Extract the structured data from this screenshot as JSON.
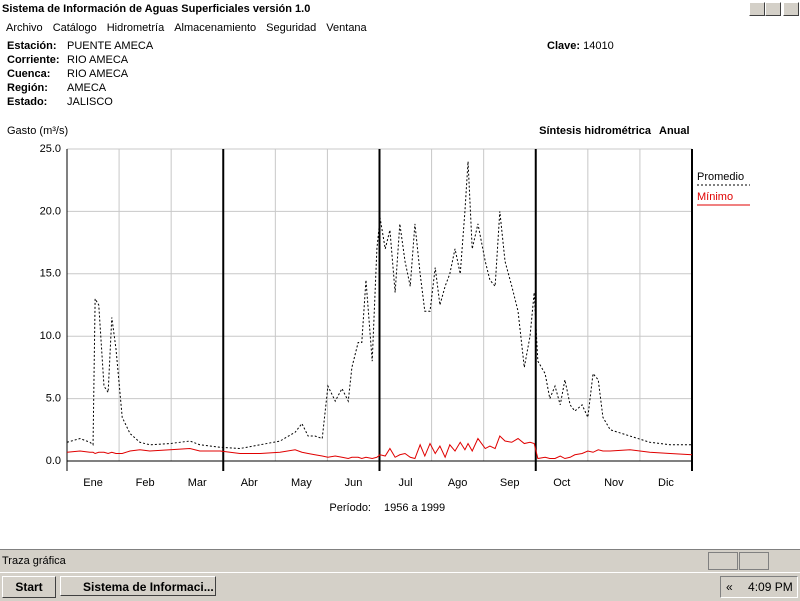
{
  "window": {
    "title": "Sistema de Información de Aguas Superficiales  versión 1.0"
  },
  "menu": [
    "Archivo",
    "Catálogo",
    "Hidrometría",
    "Almacenamiento",
    "Seguridad",
    "Ventana"
  ],
  "station": {
    "fields": [
      [
        "Estación:",
        "PUENTE AMECA"
      ],
      [
        "Corriente:",
        "RIO AMECA"
      ],
      [
        "Cuenca:",
        "RIO AMECA"
      ],
      [
        "Región:",
        "AMECA"
      ],
      [
        "Estado:",
        "JALISCO"
      ]
    ],
    "clave_label": "Clave:",
    "clave": "14010"
  },
  "chart_data": {
    "type": "line",
    "ylabel": "Gasto (m³/s)",
    "subtitle": "Síntesis hidrométrica",
    "subtitle2": "Anual",
    "period_label": "Período:",
    "period": "1956 a 1999",
    "xlim": [
      0,
      12
    ],
    "xticks": [
      {
        "value": 0.5,
        "label": "Ene"
      },
      {
        "value": 1.5,
        "label": "Feb"
      },
      {
        "value": 2.5,
        "label": "Mar"
      },
      {
        "value": 3.5,
        "label": "Abr"
      },
      {
        "value": 4.5,
        "label": "May"
      },
      {
        "value": 5.5,
        "label": "Jun"
      },
      {
        "value": 6.5,
        "label": "Jul"
      },
      {
        "value": 7.5,
        "label": "Ago"
      },
      {
        "value": 8.5,
        "label": "Sep"
      },
      {
        "value": 9.5,
        "label": "Oct"
      },
      {
        "value": 10.5,
        "label": "Nov"
      },
      {
        "value": 11.5,
        "label": "Dic"
      }
    ],
    "xgrid": [
      1,
      2,
      3,
      4,
      5,
      6,
      7,
      8,
      9,
      10,
      11
    ],
    "quarter_lines": [
      3,
      6,
      9,
      12
    ],
    "ylim": [
      0,
      25
    ],
    "yticks": [
      {
        "value": 0,
        "label": "0.0"
      },
      {
        "value": 5,
        "label": "5.0"
      },
      {
        "value": 10,
        "label": "10.0"
      },
      {
        "value": 15,
        "label": "15.0"
      },
      {
        "value": 20,
        "label": "20.0"
      },
      {
        "value": 25,
        "label": "25.0"
      }
    ],
    "grid": true,
    "legend": "right",
    "x": [
      0,
      0.25,
      0.44,
      0.5,
      0.54,
      0.61,
      0.71,
      0.79,
      0.86,
      0.94,
      1.06,
      1.21,
      1.4,
      1.59,
      1.98,
      2.36,
      2.55,
      2.94,
      3.32,
      3.71,
      4.09,
      4.38,
      4.51,
      4.63,
      4.76,
      4.9,
      5.01,
      5.15,
      5.28,
      5.4,
      5.47,
      5.59,
      5.66,
      5.74,
      5.86,
      5.95,
      6.01,
      6.11,
      6.2,
      6.3,
      6.39,
      6.49,
      6.59,
      6.68,
      6.78,
      6.87,
      6.97,
      7.07,
      7.16,
      7.26,
      7.35,
      7.45,
      7.55,
      7.64,
      7.7,
      7.78,
      7.89,
      8.03,
      8.12,
      8.22,
      8.31,
      8.41,
      8.54,
      8.66,
      8.78,
      8.89,
      8.97,
      9.04,
      9.18,
      9.27,
      9.37,
      9.47,
      9.56,
      9.66,
      9.75,
      9.89,
      10,
      10.1,
      10.2,
      10.29,
      10.43,
      10.81,
      11.19,
      11.58,
      12
    ],
    "series": [
      {
        "name": "Promedio",
        "color": "#000000",
        "dashed": true,
        "values": [
          1.5,
          1.8,
          1.5,
          1.3,
          13,
          12.5,
          6,
          5.5,
          11.5,
          9,
          3.5,
          2.2,
          1.5,
          1.3,
          1.4,
          1.6,
          1.3,
          1.1,
          1.0,
          1.3,
          1.6,
          2.3,
          3.0,
          2.0,
          2.0,
          1.8,
          6.0,
          4.8,
          5.8,
          4.8,
          7.5,
          9.5,
          9.5,
          14.5,
          8.0,
          17,
          19.5,
          17,
          18.5,
          13.5,
          19,
          16,
          14,
          19,
          15,
          12,
          12,
          15.5,
          12.5,
          14,
          15,
          17,
          15,
          20,
          24,
          17,
          19,
          16,
          14.5,
          14,
          20,
          16,
          14,
          12,
          7.5,
          10,
          13.5,
          8,
          7,
          5,
          6,
          4.5,
          6.5,
          4.5,
          4.0,
          4.5,
          3.5,
          7,
          6.5,
          3.5,
          2.5,
          2.0,
          1.5,
          1.3,
          1.3
        ]
      },
      {
        "name": "Mínimo",
        "color": "#e00000",
        "dashed": false,
        "values": [
          0.7,
          0.8,
          0.7,
          0.7,
          0.6,
          0.7,
          0.7,
          0.6,
          0.7,
          0.6,
          0.6,
          0.8,
          0.9,
          0.8,
          0.9,
          1.0,
          0.8,
          0.8,
          0.6,
          0.6,
          0.7,
          0.9,
          0.7,
          0.6,
          0.5,
          0.4,
          0.3,
          0.4,
          0.3,
          0.2,
          0.3,
          0.3,
          0.2,
          0.3,
          0.2,
          0.3,
          0.5,
          0.4,
          1.0,
          0.3,
          0.5,
          0.6,
          0.3,
          0.2,
          1.3,
          0.4,
          1.4,
          0.6,
          1.2,
          0.3,
          1.3,
          0.8,
          1.5,
          0.9,
          1.4,
          0.8,
          1.8,
          1.0,
          1.2,
          1.0,
          2.0,
          1.6,
          1.5,
          1.8,
          1.4,
          1.5,
          1.4,
          0.2,
          0.3,
          0.2,
          0.2,
          0.4,
          0.2,
          0.3,
          0.5,
          0.6,
          0.8,
          0.7,
          0.9,
          0.8,
          0.8,
          0.9,
          0.7,
          0.6,
          0.5
        ]
      }
    ]
  },
  "status_bar": "Traza gráfica",
  "taskbar": {
    "start": "Start",
    "task": "Sistema de Informaci...",
    "tray_arrows": "«",
    "time": "4:09 PM"
  }
}
